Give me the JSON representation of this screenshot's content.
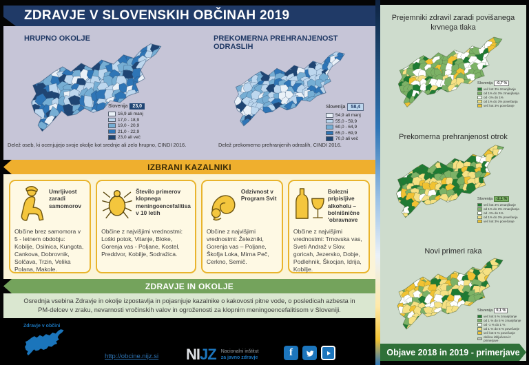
{
  "header": {
    "title": "ZDRAVJE V SLOVENSKIH OBČINAH 2019"
  },
  "colors": {
    "navy": "#203A67",
    "gold_band": "#EFAF2E",
    "green_band": "#74A35C",
    "banner_green": "#2F7038",
    "link_blue": "#2E75B6",
    "nijz_blue": "#1C75BC",
    "blue": [
      "#EAF1F8",
      "#BDD7EE",
      "#76AED4",
      "#2E75B6",
      "#1F4573"
    ],
    "green": [
      "#1E7B33",
      "#7CB266",
      "#FFFFFF",
      "#F6E183",
      "#F1C232",
      "#BFBFBF"
    ]
  },
  "maps_main": [
    {
      "title": "HRUPNO OKOLJE",
      "slovenia_label": "Slovenija",
      "slovenia_value": "23,0",
      "legend": [
        "16,9 ali manj",
        "17,0 - 18,9",
        "19,0 - 20,9",
        "21,0 - 22,9",
        "23,0 ali več"
      ],
      "caption": "Delež oseb, ki ocenjujejo svoje okolje kot srednje ali zelo hrupno, CINDI 2016."
    },
    {
      "title": "PREKOMERNA PREHRANJENOST ODRASLIH",
      "slovenia_label": "Slovenija",
      "slovenia_value": "58,4",
      "legend": [
        "54,9 ali manj",
        "55,0 - 59,9",
        "60,0 - 64,9",
        "65,0 - 69,9",
        "70,0 ali več"
      ],
      "caption": "Delež prekomerno prehranjenih odraslih, CINDI 2016."
    }
  ],
  "indicators": {
    "band_title": "IZBRANI KAZALNIKI",
    "items": [
      {
        "icon": "sitting-person-icon",
        "title": "Umrljivost zaradi samomorov",
        "text": "Občine brez samomora v 5 - letnem obdobju: Kobilje, Osilnica, Kungota, Cankova, Dobrovnik, Solčava, Trzin, Velika Polana, Makole."
      },
      {
        "icon": "tick-icon",
        "title": "Število primerov klopnega meningoencefalitisa v  10 letih",
        "text": "Občine z najvišjimi vrednostmi: Loški potok, Vitanje, Bloke, Gorenja vas - Poljane, Kostel, Preddvor, Kobilje, Sodražica."
      },
      {
        "icon": "bending-person-icon",
        "title": "Odzivnost v Program Svit",
        "text": "Občine z najvišjimi vrednostmi: Železniki, Gorenja vas – Poljane, Škofja Loka, Mirna Peč, Cerkno, Semič."
      },
      {
        "icon": "bottle-glass-icon",
        "title": "Bolezni pripisljive alkoholu – bolnišnične 'obravnave",
        "text": "Občine z najvišjimi vrednostmi: Trnovska vas, Sveti Andraž v Slov. goricah, Jezersko, Dobje, Podlehnik, Škocjan, Idrija, Kobilje."
      }
    ]
  },
  "environment": {
    "band_title": "ZDRAVJE IN OKOLJE",
    "text": "Osrednja vsebina Zdravje in okolje izpostavlja in pojasnjuje kazalnike o kakovosti pitne vode, o posledicah azbesta in PM-delcev v zraku, nevarnosti vročinskih valov in ogroženosti za klopnim meningoencefalitisom v Sloveniji."
  },
  "footer": {
    "logo_text": "Zdravje v občini",
    "link": "http://obcine.nijz.si",
    "nijz": {
      "abbr_1": "NI",
      "abbr_2": "JZ",
      "line1": "Nacionalni inštitut",
      "line2": "za javno zdravje"
    },
    "facebook_letter": "f"
  },
  "sidebar": {
    "maps": [
      {
        "title": "Prejemniki zdravil zaradi povišanega krvnega tlaka",
        "slovenia_label": "Slovenija",
        "slovenia_value": "-0,7 %",
        "legend": [
          "več kot 3% zmanjšanje",
          "od 1% do 3% zmanjšanja",
          "od -1% do 1%",
          "od 1% do 3% povečanja",
          "več kot 3% povečanje"
        ]
      },
      {
        "title": "Prekomerna prehranjenost otrok",
        "slovenia_label": "Slovenija",
        "slovenia_value": "-2,1 %",
        "legend": [
          "več kot 3% zmanjšanje",
          "od 1% do 3% zmanjšanja",
          "od -1% do 1%",
          "od 1% do 3% povečanja",
          "več kot 3% povečanje"
        ]
      },
      {
        "title": "Novi primeri raka",
        "slovenia_label": "Slovenija",
        "slovenia_value": "0,1 %",
        "legend": [
          "več kot 5 % zmanjšanje",
          "od 1 % do 5 % zmanjšanje",
          "od -1 % do 1 %",
          "od 1 % do 5 % povečanje",
          "več kot 5 % povečanje",
          "občina izključena iz primerjave"
        ]
      }
    ],
    "banner": "Objave 2018 in 2019 - primerjave"
  }
}
